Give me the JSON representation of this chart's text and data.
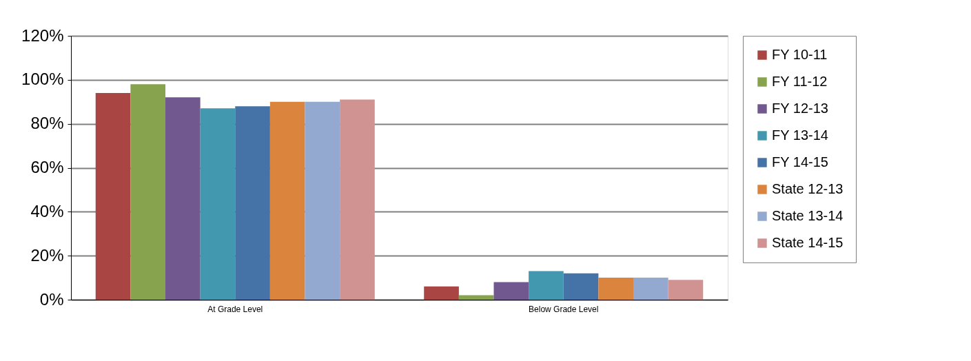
{
  "chart_data": {
    "type": "bar",
    "categories": [
      "At Grade Level",
      "Below Grade Level"
    ],
    "series": [
      {
        "name": "FY 10-11",
        "color": "#a94643",
        "values": [
          94,
          6
        ]
      },
      {
        "name": "FY 11-12",
        "color": "#87a34e",
        "values": [
          98,
          2
        ]
      },
      {
        "name": "FY 12-13",
        "color": "#71588f",
        "values": [
          92,
          8
        ]
      },
      {
        "name": "FY 13-14",
        "color": "#4198af",
        "values": [
          87,
          13
        ]
      },
      {
        "name": "FY 14-15",
        "color": "#4572a7",
        "values": [
          88,
          12
        ]
      },
      {
        "name": "State 12-13",
        "color": "#db843d",
        "values": [
          90,
          10
        ]
      },
      {
        "name": "State 13-14",
        "color": "#93a9cf",
        "values": [
          90,
          10
        ]
      },
      {
        "name": "State 14-15",
        "color": "#d19392",
        "values": [
          91,
          9
        ]
      }
    ],
    "ylim": [
      0,
      120
    ],
    "yticks": [
      {
        "value": 0,
        "label": "0%"
      },
      {
        "value": 20,
        "label": "20%"
      },
      {
        "value": 40,
        "label": "40%"
      },
      {
        "value": 60,
        "label": "60%"
      },
      {
        "value": 80,
        "label": "80%"
      },
      {
        "value": 100,
        "label": "100%"
      },
      {
        "value": 120,
        "label": "120%"
      }
    ],
    "grid": "y",
    "legend": "right"
  }
}
